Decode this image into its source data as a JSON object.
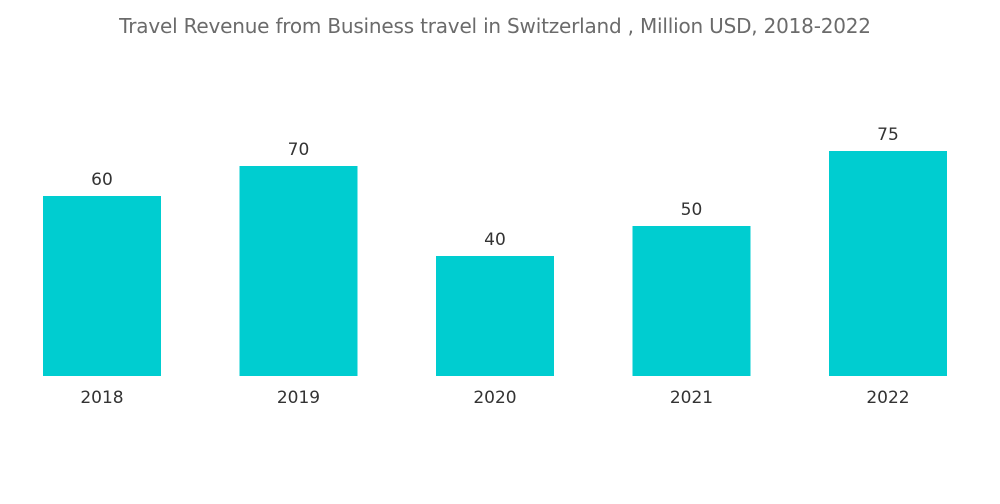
{
  "chart_data": {
    "type": "bar",
    "title": "Travel Revenue from Business travel in Switzerland , Million USD, 2018-2022",
    "categories": [
      "2018",
      "2019",
      "2020",
      "2021",
      "2022"
    ],
    "values": [
      60,
      70,
      40,
      50,
      75
    ],
    "xlabel": "",
    "ylabel": "",
    "ylim": [
      0,
      75
    ],
    "grid": false,
    "legend": "none",
    "colors": {
      "bar": "#00cdd0",
      "text": "#333333",
      "title": "#6b6b6b"
    }
  }
}
